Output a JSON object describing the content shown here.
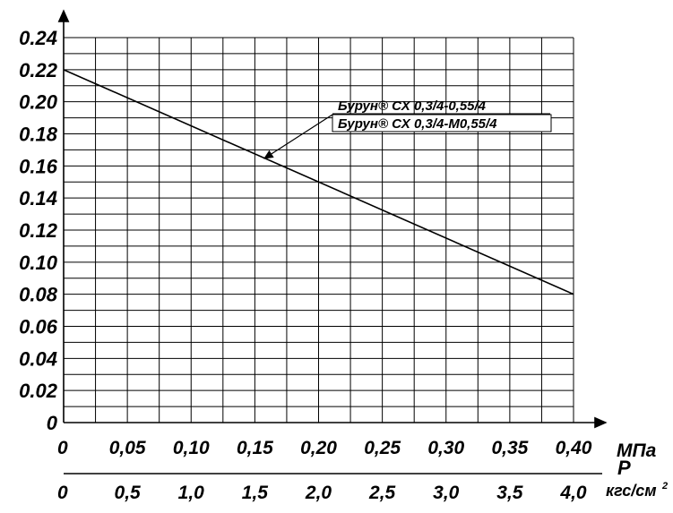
{
  "chart_data": {
    "type": "line",
    "x_mpa": [
      0,
      0.4
    ],
    "y_values": [
      0.22,
      0.08
    ],
    "ylim": [
      0,
      0.24
    ],
    "xlim_mpa": [
      0,
      0.4
    ],
    "y_ticks": [
      "0",
      "0.02",
      "0.04",
      "0.06",
      "0.08",
      "0.10",
      "0.12",
      "0.14",
      "0.16",
      "0.18",
      "0.20",
      "0.22",
      "0.24"
    ],
    "x_ticks_mpa": [
      "0",
      "0,05",
      "0,10",
      "0,15",
      "0,20",
      "0,25",
      "0,30",
      "0,35",
      "0,40"
    ],
    "x_ticks_kgf": [
      "0",
      "0,5",
      "1,0",
      "1,5",
      "2,0",
      "2,5",
      "3,0",
      "3,5",
      "4,0"
    ],
    "x_unit_mpa": "МПа",
    "x_symbol": "P",
    "x_unit_kgf": "кгс/см",
    "x_unit_kgf_sup": "2",
    "legend": [
      "Бурун® СХ  0,3/4-0,55/4",
      "Бурун® СХ 0,3/4-М0,55/4"
    ],
    "legend_points_to_x_mpa": 0.155,
    "grid": true
  }
}
